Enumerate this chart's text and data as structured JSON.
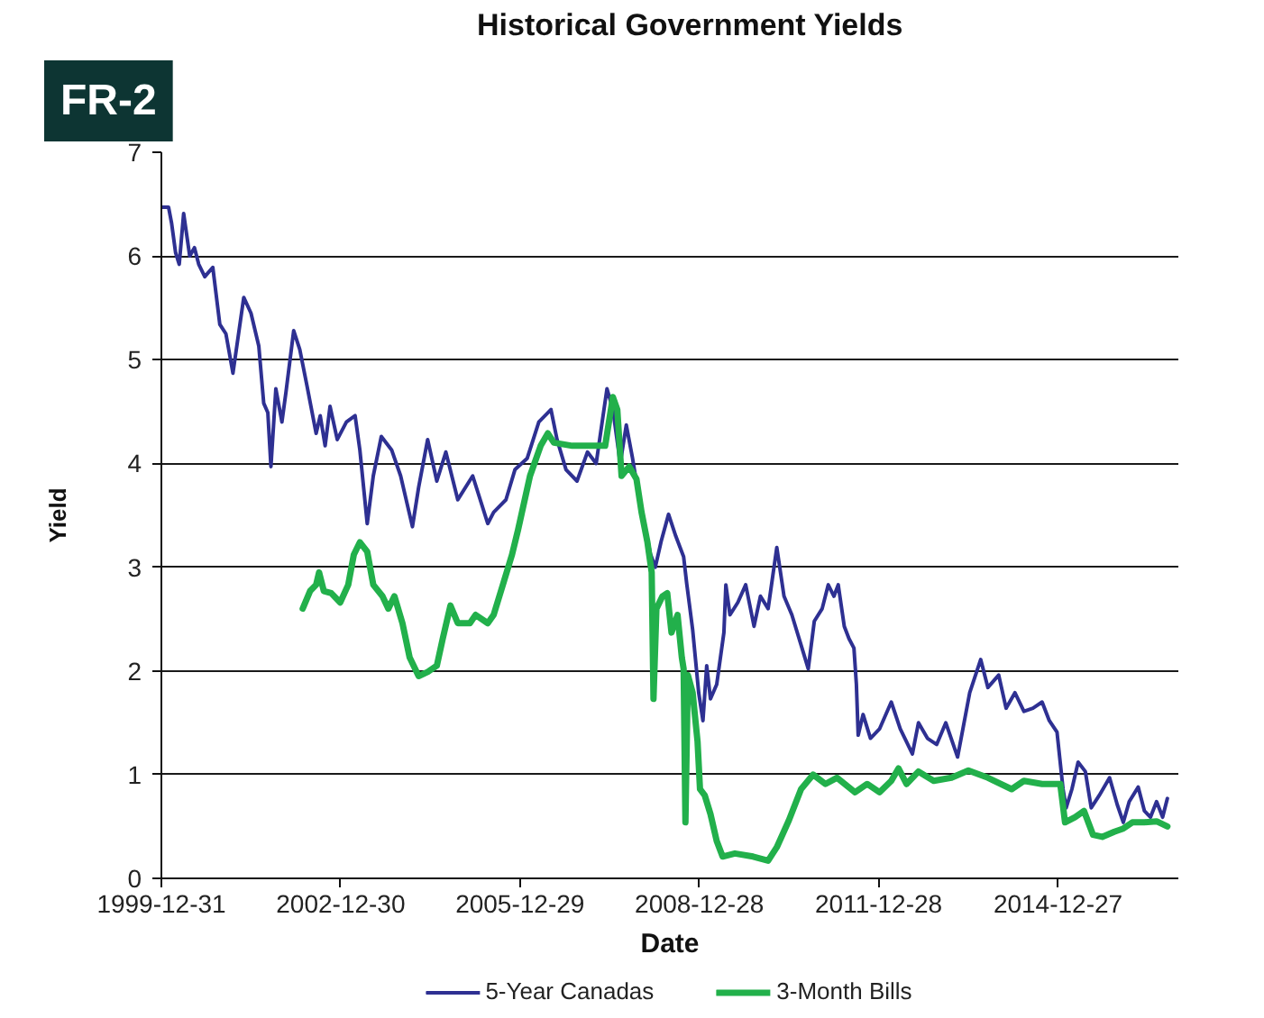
{
  "chart_data": {
    "type": "line",
    "title": "Historical Government Yields",
    "xlabel": "Date",
    "ylabel": "Yield",
    "annotations": [
      "FR-2"
    ],
    "xlim": [
      "1999-12-31",
      "2016-12-31"
    ],
    "xticks": [
      "1999-12-31",
      "2002-12-30",
      "2005-12-29",
      "2008-12-28",
      "2011-12-28",
      "2014-12-27"
    ],
    "ylim": [
      0,
      7
    ],
    "yticks": [
      0,
      1,
      2,
      3,
      4,
      5,
      6,
      7
    ],
    "grid": "y",
    "legend": "bottom",
    "series": [
      {
        "name": "5-Year Canadas",
        "color": "#2e3092",
        "x": [
          "2000-01-07",
          "2000-02-13",
          "2000-03-02",
          "2000-03-27",
          "2000-04-18",
          "2000-05-15",
          "2000-06-21",
          "2000-07-20",
          "2000-08-15",
          "2000-09-21",
          "2000-11-09",
          "2000-12-22",
          "2001-01-28",
          "2001-03-12",
          "2001-05-17",
          "2001-06-30",
          "2001-08-17",
          "2001-09-16",
          "2001-10-11",
          "2001-10-30",
          "2001-11-29",
          "2002-01-05",
          "2002-01-30",
          "2002-03-18",
          "2002-04-24",
          "2002-06-07",
          "2002-08-02",
          "2002-08-27",
          "2002-09-26",
          "2002-10-26",
          "2002-12-09",
          "2003-02-03",
          "2003-03-28",
          "2003-04-26",
          "2003-06-10",
          "2003-07-17",
          "2003-09-04",
          "2003-11-06",
          "2003-12-31",
          "2004-03-12",
          "2004-04-19",
          "2004-06-13",
          "2004-08-08",
          "2004-10-02",
          "2004-12-14",
          "2005-03-15",
          "2005-06-15",
          "2005-07-21",
          "2005-10-04",
          "2005-11-28",
          "2006-02-11",
          "2006-04-23",
          "2006-07-06",
          "2006-08-12",
          "2006-10-06",
          "2006-12-12",
          "2007-02-14",
          "2007-04-08",
          "2007-06-13",
          "2007-07-19",
          "2007-09-02",
          "2007-10-09",
          "2007-11-15",
          "2007-12-15",
          "2008-01-28",
          "2008-03-04",
          "2008-04-03",
          "2008-05-09",
          "2008-06-23",
          "2008-08-06",
          "2008-09-23",
          "2008-10-12",
          "2008-11-17",
          "2008-12-24",
          "2009-01-19",
          "2009-02-11",
          "2009-03-06",
          "2009-04-13",
          "2009-05-27",
          "2009-06-08",
          "2009-07-03",
          "2009-08-20",
          "2009-10-07",
          "2009-11-27",
          "2010-01-05",
          "2010-02-21",
          "2010-04-15",
          "2010-05-29",
          "2010-07-16",
          "2010-09-10",
          "2010-10-24",
          "2010-11-30",
          "2011-01-17",
          "2011-02-23",
          "2011-03-30",
          "2011-04-25",
          "2011-06-01",
          "2011-06-30",
          "2011-07-30",
          "2011-08-14",
          "2011-08-25",
          "2011-09-24",
          "2011-11-08",
          "2012-01-02",
          "2012-03-14",
          "2012-05-08",
          "2012-07-21",
          "2012-08-27",
          "2012-10-21",
          "2012-12-16",
          "2013-02-10",
          "2013-04-23",
          "2013-07-06",
          "2013-09-11",
          "2013-10-25",
          "2013-12-30",
          "2014-02-13",
          "2014-04-08",
          "2014-06-02",
          "2014-07-27",
          "2014-09-21",
          "2014-11-04",
          "2014-12-21",
          "2015-01-27",
          "2015-02-15",
          "2015-03-22",
          "2015-04-29",
          "2015-06-12",
          "2015-07-18",
          "2015-09-05",
          "2015-11-07",
          "2015-12-24",
          "2016-01-30",
          "2016-03-06",
          "2016-04-30",
          "2016-06-07",
          "2016-07-14",
          "2016-08-20",
          "2016-09-26",
          "2016-10-25"
        ],
        "values": [
          6.47,
          6.47,
          6.32,
          6.03,
          5.92,
          6.41,
          6.0,
          6.08,
          5.92,
          5.8,
          5.89,
          5.34,
          5.25,
          4.87,
          5.6,
          5.45,
          5.13,
          4.58,
          4.49,
          3.97,
          4.72,
          4.4,
          4.69,
          5.28,
          5.1,
          4.75,
          4.29,
          4.46,
          4.17,
          4.55,
          4.23,
          4.4,
          4.46,
          4.13,
          3.42,
          3.88,
          4.26,
          4.13,
          3.88,
          3.39,
          3.77,
          4.23,
          3.83,
          4.11,
          3.65,
          3.88,
          3.42,
          3.53,
          3.65,
          3.94,
          4.05,
          4.4,
          4.52,
          4.23,
          3.94,
          3.83,
          4.11,
          4.0,
          4.72,
          4.52,
          4.0,
          4.37,
          4.06,
          3.77,
          3.42,
          3.13,
          3.0,
          3.25,
          3.51,
          3.3,
          3.1,
          2.84,
          2.4,
          1.79,
          1.52,
          2.05,
          1.73,
          1.87,
          2.37,
          2.83,
          2.54,
          2.66,
          2.83,
          2.43,
          2.72,
          2.6,
          3.19,
          2.72,
          2.54,
          2.25,
          2.02,
          2.48,
          2.6,
          2.83,
          2.72,
          2.83,
          2.43,
          2.31,
          2.22,
          1.87,
          1.38,
          1.58,
          1.35,
          1.44,
          1.7,
          1.44,
          1.2,
          1.5,
          1.35,
          1.29,
          1.5,
          1.17,
          1.79,
          2.11,
          1.84,
          1.96,
          1.64,
          1.79,
          1.61,
          1.64,
          1.7,
          1.52,
          1.41,
          0.86,
          0.68,
          0.86,
          1.12,
          1.03,
          0.68,
          0.8,
          0.97,
          0.71,
          0.54,
          0.74,
          0.88,
          0.65,
          0.59,
          0.74,
          0.59,
          0.77
        ]
      },
      {
        "name": "3-Month Bills",
        "color": "#22b04b",
        "x": [
          "2002-05-12",
          "2002-06-26",
          "2002-08-02",
          "2002-08-20",
          "2002-09-18",
          "2002-11-02",
          "2002-12-27",
          "2003-02-14",
          "2003-03-20",
          "2003-04-26",
          "2003-06-10",
          "2003-07-17",
          "2003-09-11",
          "2003-10-17",
          "2003-11-23",
          "2004-01-11",
          "2004-02-24",
          "2004-04-19",
          "2004-06-13",
          "2004-08-08",
          "2004-09-13",
          "2004-10-30",
          "2004-12-14",
          "2005-02-26",
          "2005-04-02",
          "2005-06-15",
          "2005-07-21",
          "2005-09-15",
          "2005-11-10",
          "2005-12-17",
          "2006-02-28",
          "2006-05-04",
          "2006-06-17",
          "2006-07-24",
          "2006-11-13",
          "2007-03-02",
          "2007-06-02",
          "2007-07-19",
          "2007-08-15",
          "2007-09-10",
          "2007-10-27",
          "2007-12-10",
          "2008-01-10",
          "2008-02-15",
          "2008-03-12",
          "2008-03-23",
          "2008-04-10",
          "2008-05-17",
          "2008-06-15",
          "2008-07-11",
          "2008-08-17",
          "2008-09-12",
          "2008-09-23",
          "2008-10-04",
          "2008-10-19",
          "2008-11-17",
          "2008-12-17",
          "2009-01-01",
          "2009-01-30",
          "2009-03-06",
          "2009-04-13",
          "2009-05-19",
          "2009-08-02",
          "2009-11-21",
          "2010-02-21",
          "2010-04-15",
          "2010-06-28",
          "2010-09-10",
          "2010-11-23",
          "2011-02-06",
          "2011-04-17",
          "2011-08-06",
          "2011-10-19",
          "2012-01-02",
          "2012-03-14",
          "2012-04-27",
          "2012-06-15",
          "2012-08-27",
          "2012-11-28",
          "2013-03-17",
          "2013-06-28",
          "2013-10-25",
          "2014-03-19",
          "2014-06-02",
          "2014-09-21",
          "2015-01-10",
          "2015-02-08",
          "2015-04-10",
          "2015-06-04",
          "2015-07-29",
          "2015-09-23",
          "2015-12-06",
          "2016-01-30",
          "2016-03-25",
          "2016-06-07",
          "2016-08-20",
          "2016-10-25"
        ],
        "values": [
          2.6,
          2.77,
          2.83,
          2.95,
          2.77,
          2.75,
          2.66,
          2.83,
          3.12,
          3.24,
          3.15,
          2.83,
          2.72,
          2.6,
          2.72,
          2.46,
          2.13,
          1.95,
          1.99,
          2.05,
          2.31,
          2.63,
          2.46,
          2.46,
          2.54,
          2.46,
          2.54,
          2.83,
          3.12,
          3.36,
          3.88,
          4.17,
          4.29,
          4.2,
          4.17,
          4.17,
          4.17,
          4.64,
          4.52,
          3.88,
          3.97,
          3.85,
          3.53,
          3.24,
          2.95,
          1.73,
          2.6,
          2.72,
          2.75,
          2.37,
          2.54,
          2.13,
          2.02,
          0.54,
          1.96,
          1.79,
          1.32,
          0.86,
          0.8,
          0.62,
          0.36,
          0.21,
          0.24,
          0.21,
          0.17,
          0.3,
          0.56,
          0.86,
          1.0,
          0.91,
          0.97,
          0.83,
          0.91,
          0.83,
          0.94,
          1.06,
          0.91,
          1.03,
          0.94,
          0.97,
          1.04,
          0.97,
          0.86,
          0.94,
          0.91,
          0.91,
          0.54,
          0.59,
          0.65,
          0.42,
          0.4,
          0.45,
          0.48,
          0.54,
          0.54,
          0.55,
          0.5
        ]
      }
    ]
  }
}
